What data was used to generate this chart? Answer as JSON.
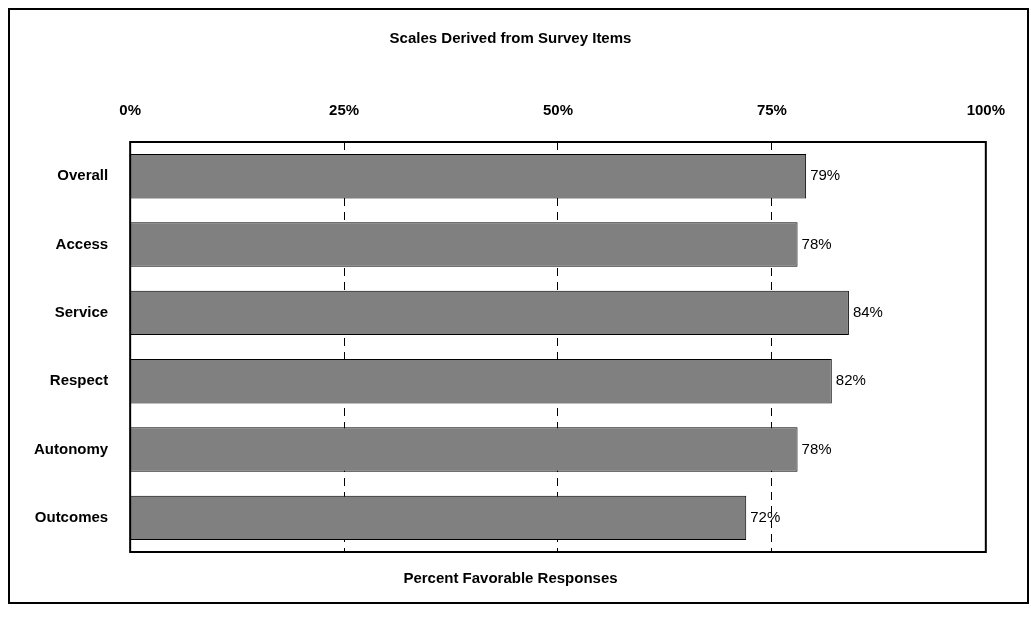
{
  "chart_data": {
    "type": "bar",
    "orientation": "horizontal",
    "subtitle": "Scales Derived from Survey Items",
    "xlabel": "Percent Favorable Responses",
    "categories": [
      "Overall",
      "Access",
      "Service",
      "Respect",
      "Autonomy",
      "Outcomes"
    ],
    "values": [
      79,
      78,
      84,
      82,
      78,
      72
    ],
    "color": "#808080",
    "value_labels": [
      "79%",
      "78%",
      "84%",
      "82%",
      "78%",
      "72%"
    ],
    "xlim": [
      0,
      100
    ],
    "xticks": [
      {
        "value": 0,
        "label": "0%"
      },
      {
        "value": 25,
        "label": "25%"
      },
      {
        "value": 50,
        "label": "50%"
      },
      {
        "value": 75,
        "label": "75%"
      },
      {
        "value": 100,
        "label": "100%"
      }
    ],
    "grid": "x",
    "legend": false
  }
}
